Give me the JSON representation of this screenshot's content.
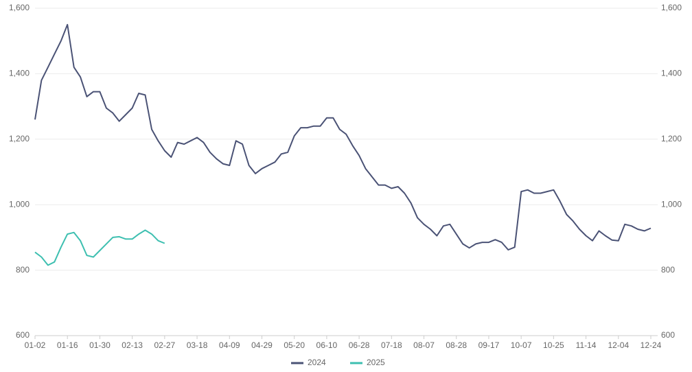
{
  "chart_data": {
    "type": "line",
    "categories": [
      "01-02",
      null,
      null,
      null,
      null,
      "01-16",
      null,
      null,
      null,
      null,
      "01-30",
      null,
      null,
      null,
      null,
      "02-13",
      null,
      null,
      null,
      null,
      "02-27",
      null,
      null,
      null,
      null,
      "03-18",
      null,
      null,
      null,
      null,
      "04-09",
      null,
      null,
      null,
      null,
      "04-29",
      null,
      null,
      null,
      null,
      "05-20",
      null,
      null,
      null,
      null,
      "06-10",
      null,
      null,
      null,
      null,
      "06-28",
      null,
      null,
      null,
      null,
      "07-18",
      null,
      null,
      null,
      null,
      "08-07",
      null,
      null,
      null,
      null,
      "08-28",
      null,
      null,
      null,
      null,
      "09-17",
      null,
      null,
      null,
      null,
      "10-07",
      null,
      null,
      null,
      null,
      "10-25",
      null,
      null,
      null,
      null,
      "11-14",
      null,
      null,
      null,
      null,
      "12-04",
      null,
      null,
      null,
      null,
      "12-24"
    ],
    "series": [
      {
        "name": "2024",
        "color": "#4a5275",
        "values": [
          1260,
          1380,
          1420,
          1460,
          1500,
          1550,
          1420,
          1390,
          1330,
          1345,
          1345,
          1295,
          1280,
          1255,
          1275,
          1295,
          1340,
          1335,
          1230,
          1195,
          1165,
          1145,
          1190,
          1185,
          1195,
          1205,
          1190,
          1160,
          1140,
          1125,
          1120,
          1195,
          1185,
          1120,
          1095,
          1110,
          1120,
          1130,
          1155,
          1160,
          1210,
          1235,
          1235,
          1240,
          1240,
          1265,
          1265,
          1230,
          1215,
          1180,
          1150,
          1110,
          1085,
          1060,
          1060,
          1050,
          1055,
          1035,
          1005,
          960,
          940,
          925,
          905,
          935,
          940,
          910,
          880,
          868,
          880,
          885,
          885,
          893,
          885,
          862,
          870,
          1040,
          1045,
          1035,
          1035,
          1040,
          1045,
          1010,
          970,
          950,
          925,
          905,
          890,
          920,
          905,
          892,
          890,
          940,
          935,
          925,
          920,
          928
        ]
      },
      {
        "name": "2025",
        "color": "#3dbfb0",
        "values": [
          855,
          840,
          815,
          825,
          870,
          910,
          915,
          890,
          845,
          840,
          860,
          880,
          900,
          902,
          895,
          895,
          910,
          922,
          910,
          890,
          882,
          null,
          null,
          null,
          null,
          null,
          null,
          null,
          null,
          null,
          null,
          null,
          null,
          null,
          null,
          null,
          null,
          null,
          null,
          null,
          null,
          null,
          null,
          null,
          null,
          null,
          null,
          null,
          null,
          null,
          null,
          null,
          null,
          null,
          null,
          null,
          null,
          null,
          null,
          null,
          null,
          null,
          null,
          null,
          null,
          null,
          null,
          null,
          null,
          null,
          null,
          null,
          null,
          null,
          null,
          null,
          null,
          null,
          null,
          null,
          null,
          null,
          null,
          null,
          null,
          null,
          null,
          null,
          null,
          null,
          null,
          null,
          null,
          null,
          null,
          null
        ]
      }
    ],
    "ylim": [
      600,
      1600
    ],
    "yticks": [
      600,
      {
        "value": 800,
        "label": "800"
      },
      {
        "value": 1000,
        "label": "1,000"
      },
      {
        "value": 1200,
        "label": "1,200"
      },
      {
        "value": 1400,
        "label": "1,400"
      },
      {
        "value": 1600,
        "label": "1,600"
      }
    ],
    "y2lim": [
      600,
      1600
    ],
    "y2ticks": [
      600,
      {
        "value": 800,
        "label": "800"
      },
      {
        "value": 1000,
        "label": "1,000"
      },
      {
        "value": 1200,
        "label": "1,200"
      },
      {
        "value": 1400,
        "label": "1,400"
      },
      {
        "value": 1600,
        "label": "1,600"
      }
    ],
    "grid": true,
    "legend": "bottom"
  }
}
